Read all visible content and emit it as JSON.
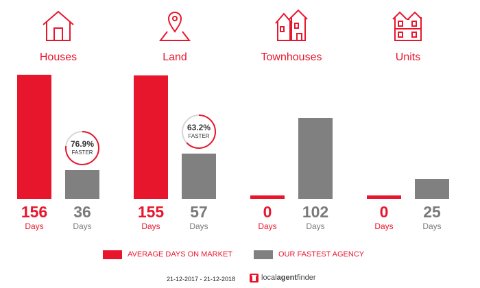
{
  "colors": {
    "accent": "#e8162d",
    "grey": "#7a7a7a",
    "bar_grey": "#808080"
  },
  "categories": [
    {
      "label": "Houses",
      "icon": "house-icon",
      "avg_value": "156",
      "fast_value": "36",
      "avg_unit": "Days",
      "fast_unit": "Days",
      "badge_pct": "76.9%",
      "badge_word": "FASTER",
      "badge_fraction": 0.769
    },
    {
      "label": "Land",
      "icon": "land-pin-icon",
      "avg_value": "155",
      "fast_value": "57",
      "avg_unit": "Days",
      "fast_unit": "Days",
      "badge_pct": "63.2%",
      "badge_word": "FASTER",
      "badge_fraction": 0.632
    },
    {
      "label": "Townhouses",
      "icon": "townhouse-icon",
      "avg_value": "0",
      "fast_value": "102",
      "avg_unit": "Days",
      "fast_unit": "Days"
    },
    {
      "label": "Units",
      "icon": "units-building-icon",
      "avg_value": "0",
      "fast_value": "25",
      "avg_unit": "Days",
      "fast_unit": "Days"
    }
  ],
  "legend": {
    "avg_label": "AVERAGE DAYS ON MARKET",
    "fast_label": "OUR FASTEST AGENCY"
  },
  "footer": {
    "date_range": "21-12-2017 - 21-12-2018",
    "brand_part1": "local",
    "brand_part2": "agent",
    "brand_part3": "finder"
  },
  "chart_data": {
    "type": "bar",
    "categories": [
      "Houses",
      "Land",
      "Townhouses",
      "Units"
    ],
    "series": [
      {
        "name": "AVERAGE DAYS ON MARKET",
        "values": [
          156,
          155,
          0,
          0
        ]
      },
      {
        "name": "OUR FASTEST AGENCY",
        "values": [
          36,
          57,
          102,
          25
        ]
      }
    ],
    "ylim": [
      0,
      156
    ],
    "legend_position": "bottom",
    "grid": false
  }
}
